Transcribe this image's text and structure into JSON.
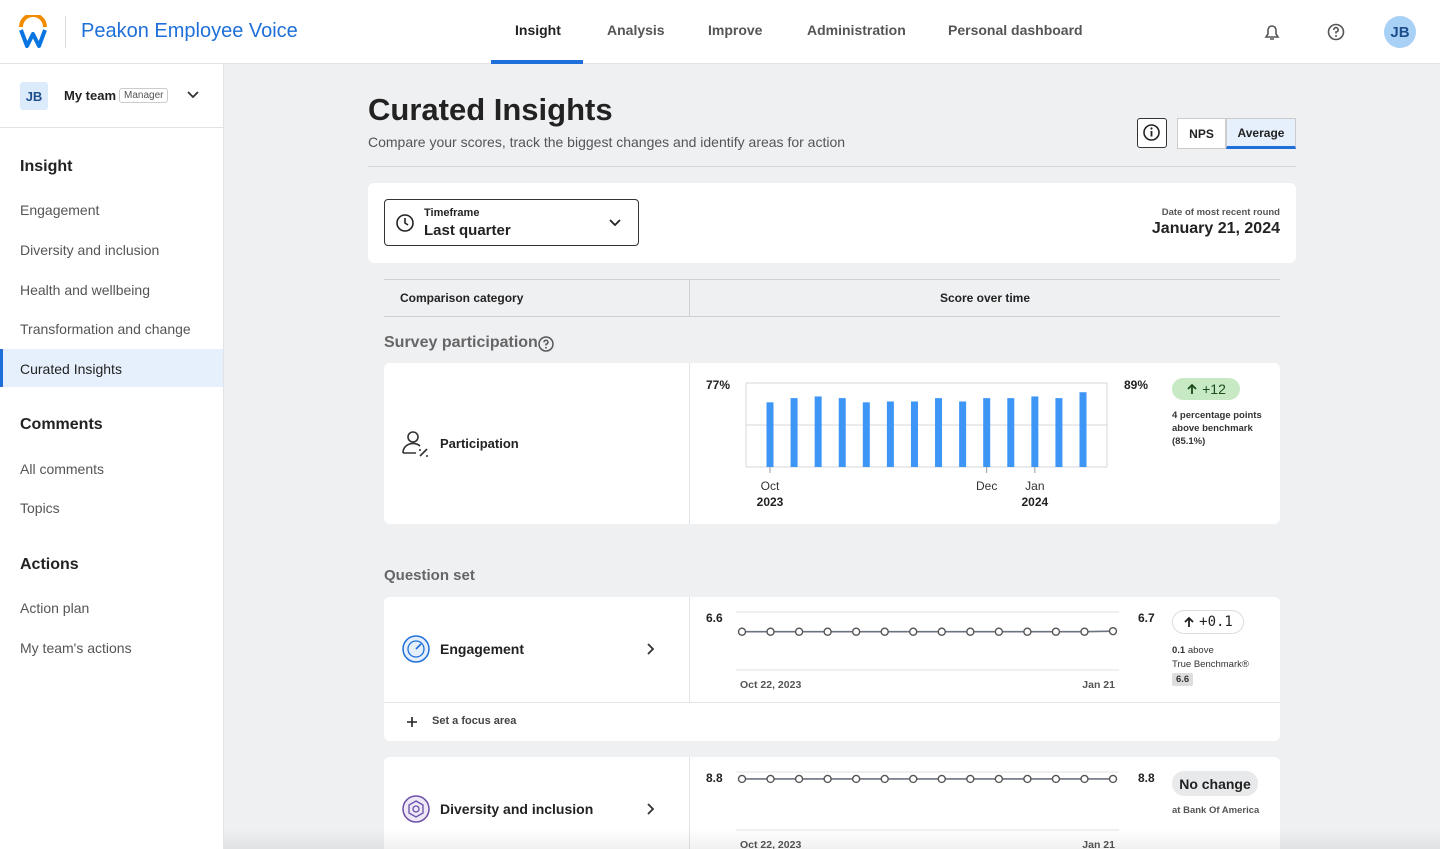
{
  "header": {
    "brand": "Peakon Employee Voice",
    "nav": [
      "Insight",
      "Analysis",
      "Improve",
      "Administration",
      "Personal dashboard"
    ],
    "avatar": "JB"
  },
  "sidebar": {
    "team": {
      "initials": "JB",
      "name": "My team",
      "role": "Manager"
    },
    "sections": [
      {
        "title": "Insight",
        "items": [
          "Engagement",
          "Diversity and inclusion",
          "Health and wellbeing",
          "Transformation and change",
          "Curated Insights"
        ]
      },
      {
        "title": "Comments",
        "items": [
          "All comments",
          "Topics"
        ]
      },
      {
        "title": "Actions",
        "items": [
          "Action plan",
          "My team's actions"
        ]
      }
    ]
  },
  "page": {
    "title": "Curated Insights",
    "subtitle": "Compare your scores, track the biggest changes and identify areas for action",
    "toggle": [
      "NPS",
      "Average"
    ]
  },
  "filter": {
    "label": "Timeframe",
    "value": "Last quarter",
    "date_label": "Date of most recent round",
    "date": "January 21, 2024"
  },
  "table": {
    "columns": [
      "Comparison category",
      "Score over time"
    ]
  },
  "participation": {
    "title": "Survey participation",
    "name": "Participation",
    "start": "77%",
    "end": "89%",
    "delta": "+12",
    "note": "4 percentage points above benchmark (85.1%)",
    "chart": {
      "type": "bar",
      "color": "#3d95f5",
      "ylim": [
        0,
        100
      ],
      "gridlines": [
        0,
        50,
        100
      ],
      "values": [
        77,
        82,
        84,
        82,
        77,
        78,
        78,
        82,
        78,
        82,
        82,
        84,
        82,
        89
      ],
      "categories": [
        "Oct",
        null,
        null,
        null,
        null,
        null,
        null,
        null,
        null,
        "Dec",
        null,
        "Jan",
        null,
        null
      ],
      "years": [
        "2023",
        null,
        null,
        null,
        null,
        null,
        null,
        null,
        null,
        null,
        null,
        "2024",
        null,
        null
      ]
    }
  },
  "question_set": {
    "title": "Question set",
    "focus": "Set a focus area",
    "rows": [
      {
        "name": "Engagement",
        "start": "6.6",
        "end": "6.7",
        "delta": "+0.1",
        "note_value": "0.1",
        "note": "above",
        "benchmark": "True Benchmark®",
        "benchmark_value": "6.6",
        "chart": {
          "type": "line",
          "color": "#6b7280",
          "ylim": [
            0,
            10
          ],
          "values": [
            6.6,
            6.6,
            6.6,
            6.6,
            6.6,
            6.6,
            6.6,
            6.6,
            6.6,
            6.6,
            6.6,
            6.6,
            6.6,
            6.7
          ],
          "categories": [
            "Oct 22, 2023",
            null,
            null,
            null,
            null,
            null,
            null,
            null,
            null,
            null,
            null,
            null,
            null,
            "Jan 21"
          ]
        }
      },
      {
        "name": "Diversity and inclusion",
        "start": "8.8",
        "end": "8.8",
        "delta": "No change",
        "note": "at Bank Of America",
        "chart": {
          "type": "line",
          "color": "#6b7280",
          "ylim": [
            0,
            10
          ],
          "values": [
            8.8,
            8.8,
            8.8,
            8.8,
            8.8,
            8.8,
            8.8,
            8.8,
            8.8,
            8.8,
            8.8,
            8.8,
            8.8,
            8.8
          ],
          "categories": [
            "Oct 22, 2023",
            null,
            null,
            null,
            null,
            null,
            null,
            null,
            null,
            null,
            null,
            null,
            null,
            "Jan 21"
          ]
        }
      }
    ]
  }
}
